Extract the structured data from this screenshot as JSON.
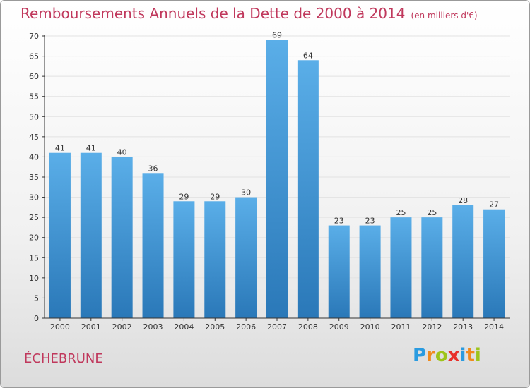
{
  "header": {
    "title": "Remboursements Annuels de la Dette de 2000 à 2014",
    "subtitle": "(en milliers d'€)"
  },
  "footer": {
    "commune": "ÉCHEBRUNE",
    "logo": {
      "text": "Proxiti",
      "letters": [
        {
          "ch": "P",
          "color": "#2a9be0"
        },
        {
          "ch": "r",
          "color": "#f08a1c"
        },
        {
          "ch": "o",
          "color": "#9dc41a"
        },
        {
          "ch": "x",
          "color": "#e8302a"
        },
        {
          "ch": "i",
          "color": "#2a9be0"
        },
        {
          "ch": "t",
          "color": "#f08a1c"
        },
        {
          "ch": "i",
          "color": "#9dc41a"
        }
      ]
    }
  },
  "colors": {
    "title": "#c0385c",
    "bar_top": "#5aaee8",
    "bar_bottom": "#2a78b8",
    "axis": "#333333",
    "grid": "#e2e2e2"
  },
  "chart_data": {
    "type": "bar",
    "title": "Remboursements Annuels de la Dette de 2000 à 2014",
    "subtitle": "(en milliers d'€)",
    "xlabel": "",
    "ylabel": "",
    "categories": [
      "2000",
      "2001",
      "2002",
      "2003",
      "2004",
      "2005",
      "2006",
      "2007",
      "2008",
      "2009",
      "2010",
      "2011",
      "2012",
      "2013",
      "2014"
    ],
    "values": [
      41,
      41,
      40,
      36,
      29,
      29,
      30,
      69,
      64,
      23,
      23,
      25,
      25,
      28,
      27
    ],
    "ylim": [
      0,
      70
    ],
    "yticks": [
      0,
      5,
      10,
      15,
      20,
      25,
      30,
      35,
      40,
      45,
      50,
      55,
      60,
      65,
      70
    ],
    "grid": true,
    "data_labels": true
  }
}
